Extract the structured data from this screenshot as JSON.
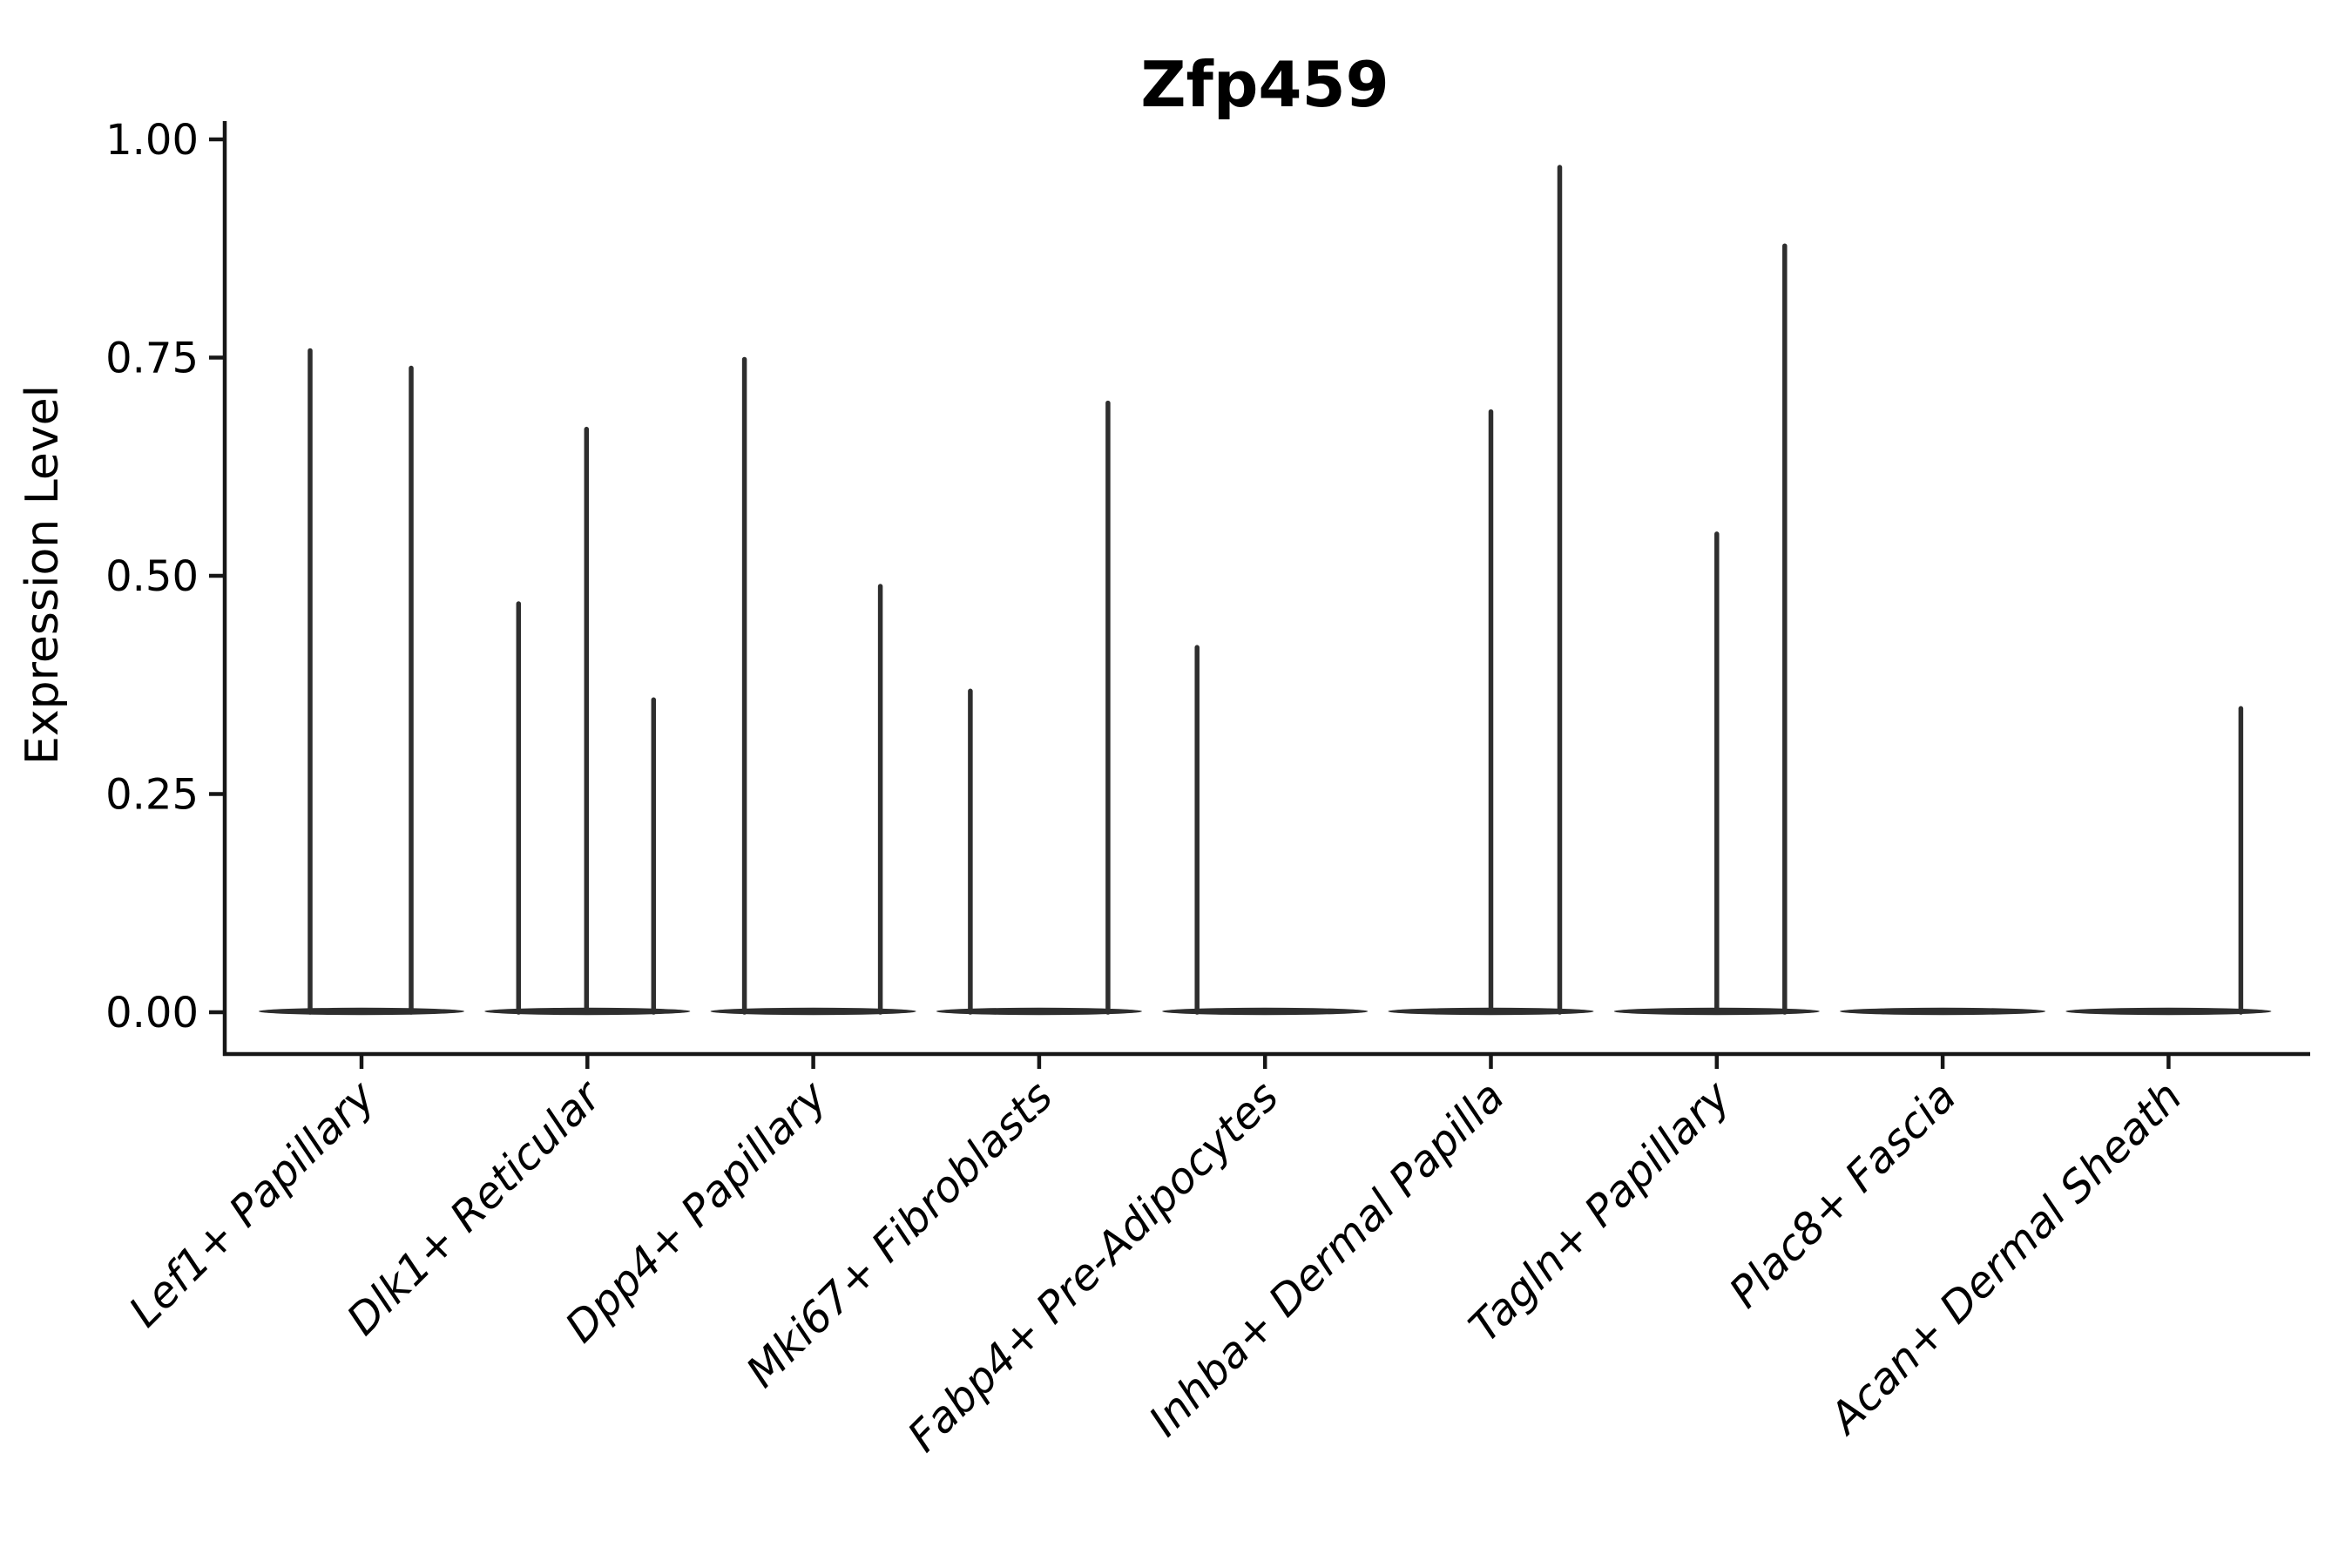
{
  "figure": {
    "background": "#ffffff",
    "text_color": "#000000",
    "axis_color": "#161616",
    "violin_color": "#2e2e2e"
  },
  "chart_data": {
    "type": "violin",
    "title": "Zfp459",
    "xlabel": "",
    "ylabel": "Expression Level",
    "grid": false,
    "legend": null,
    "ylim": [
      -0.05,
      1.045
    ],
    "yticks": {
      "values": [
        0.0,
        0.25,
        0.5,
        0.75,
        1.0
      ],
      "labels": [
        "0.00",
        "0.25",
        "0.50",
        "0.75",
        "1.00"
      ]
    },
    "categories": [
      "Lef1+ Papillary",
      "Dlk1+ Reticular",
      "Dpp4+ Papillary",
      "Mki67+ Fibroblasts",
      "Fabp4+ Pre-Adipocytes",
      "Inhba+ Dermal Papilla",
      "Tagln+ Papillary",
      "Plac8+ Fascia",
      "Acan+ Dermal Sheath"
    ],
    "violins": [
      {
        "category": "Lef1+ Papillary",
        "baseline_value": 0.0,
        "spikes": [
          {
            "offset": -59,
            "value": 0.76
          },
          {
            "offset": 57,
            "value": 0.74
          }
        ]
      },
      {
        "category": "Dlk1+ Reticular",
        "baseline_value": 0.0,
        "spikes": [
          {
            "offset": -79,
            "value": 0.47
          },
          {
            "offset": -1,
            "value": 0.67
          },
          {
            "offset": 76,
            "value": 0.36
          }
        ]
      },
      {
        "category": "Dpp4+ Papillary",
        "baseline_value": 0.0,
        "spikes": [
          {
            "offset": -79,
            "value": 0.75
          },
          {
            "offset": 77,
            "value": 0.49
          }
        ]
      },
      {
        "category": "Mki67+ Fibroblasts",
        "baseline_value": 0.0,
        "spikes": [
          {
            "offset": -79,
            "value": 0.37
          },
          {
            "offset": 79,
            "value": 0.7
          }
        ]
      },
      {
        "category": "Fabp4+ Pre-Adipocytes",
        "baseline_value": 0.0,
        "spikes": [
          {
            "offset": -78,
            "value": 0.42
          }
        ]
      },
      {
        "category": "Inhba+ Dermal Papilla",
        "baseline_value": 0.0,
        "spikes": [
          {
            "offset": 0,
            "value": 0.69
          },
          {
            "offset": 79,
            "value": 0.97
          }
        ]
      },
      {
        "category": "Tagln+ Papillary",
        "baseline_value": 0.0,
        "spikes": [
          {
            "offset": 0,
            "value": 0.55
          },
          {
            "offset": 78,
            "value": 0.88
          }
        ]
      },
      {
        "category": "Plac8+ Fascia",
        "baseline_value": 0.0,
        "spikes": []
      },
      {
        "category": "Acan+ Dermal Sheath",
        "baseline_value": 0.0,
        "spikes": [
          {
            "offset": 83,
            "value": 0.35
          }
        ]
      }
    ]
  }
}
